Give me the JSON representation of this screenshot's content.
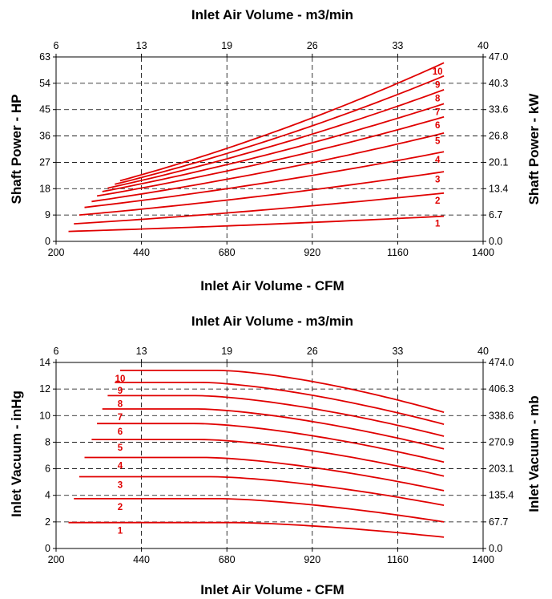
{
  "colors": {
    "curve": "#e00000",
    "text": "#000000",
    "background": "#ffffff"
  },
  "chart_data": [
    {
      "type": "line",
      "title_top": "Inlet Air Volume - m3/min",
      "xlabel": "Inlet Air Volume - CFM",
      "ylabel": "Shaft Power - HP",
      "ylabel_right": "Shaft Power - kW",
      "xlim": [
        200,
        1400
      ],
      "ylim": [
        0,
        63
      ],
      "x_ticks": [
        "200",
        "440",
        "680",
        "920",
        "1160",
        "1400"
      ],
      "x_top_ticks": [
        "6",
        "13",
        "19",
        "26",
        "33",
        "40"
      ],
      "y_ticks": [
        "0",
        "9",
        "18",
        "27",
        "36",
        "45",
        "54",
        "63"
      ],
      "y_right_ticks": [
        "0.0",
        "6.7",
        "13.4",
        "20.1",
        "26.8",
        "33.6",
        "40.3",
        "47.0"
      ],
      "grid": true,
      "series": [
        {
          "name": "1",
          "x": [
            235,
            1290
          ],
          "y": [
            3.4,
            8.6
          ]
        },
        {
          "name": "2",
          "x": [
            250,
            1290
          ],
          "y": [
            6.0,
            16.5
          ]
        },
        {
          "name": "3",
          "x": [
            265,
            1290
          ],
          "y": [
            9.0,
            23.8
          ]
        },
        {
          "name": "4",
          "x": [
            280,
            1290
          ],
          "y": [
            11.6,
            30.6
          ]
        },
        {
          "name": "5",
          "x": [
            300,
            1290
          ],
          "y": [
            13.6,
            37.0
          ]
        },
        {
          "name": "6",
          "x": [
            315,
            1290
          ],
          "y": [
            15.5,
            42.5
          ]
        },
        {
          "name": "7",
          "x": [
            330,
            1290
          ],
          "y": [
            17.0,
            47.0
          ]
        },
        {
          "name": "8",
          "x": [
            345,
            1290
          ],
          "y": [
            18.2,
            51.8
          ]
        },
        {
          "name": "9",
          "x": [
            365,
            1290
          ],
          "y": [
            19.5,
            56.5
          ]
        },
        {
          "name": "10",
          "x": [
            380,
            1290
          ],
          "y": [
            20.7,
            61.0
          ]
        }
      ]
    },
    {
      "type": "line",
      "title_top": "Inlet Air Volume - m3/min",
      "xlabel": "Inlet Air Volume - CFM",
      "ylabel": "Inlet Vacuum - inHg",
      "ylabel_right": "Inlet Vacuum - mb",
      "xlim": [
        200,
        1400
      ],
      "ylim": [
        0,
        14
      ],
      "x_ticks": [
        "200",
        "440",
        "680",
        "920",
        "1160",
        "1400"
      ],
      "x_top_ticks": [
        "6",
        "13",
        "19",
        "26",
        "33",
        "40"
      ],
      "y_ticks": [
        "0",
        "2",
        "4",
        "6",
        "8",
        "10",
        "12",
        "14"
      ],
      "y_right_ticks": [
        "0.0",
        "67.7",
        "135.4",
        "203.1",
        "270.9",
        "338.6",
        "406.3",
        "474.0"
      ],
      "grid": true,
      "series": [
        {
          "name": "1",
          "start": 235,
          "level": 1.95,
          "flat_end": 700,
          "y_end": 0.85
        },
        {
          "name": "2",
          "start": 250,
          "level": 3.75,
          "flat_end": 660,
          "y_end": 2.0
        },
        {
          "name": "3",
          "start": 265,
          "level": 5.4,
          "flat_end": 640,
          "y_end": 3.25
        },
        {
          "name": "4",
          "start": 280,
          "level": 6.85,
          "flat_end": 620,
          "y_end": 4.35
        },
        {
          "name": "5",
          "start": 300,
          "level": 8.2,
          "flat_end": 610,
          "y_end": 5.45
        },
        {
          "name": "6",
          "start": 315,
          "level": 9.4,
          "flat_end": 600,
          "y_end": 6.5
        },
        {
          "name": "7",
          "start": 330,
          "level": 10.5,
          "flat_end": 600,
          "y_end": 7.5
        },
        {
          "name": "8",
          "start": 345,
          "level": 11.5,
          "flat_end": 600,
          "y_end": 8.45
        },
        {
          "name": "9",
          "start": 365,
          "level": 12.5,
          "flat_end": 610,
          "y_end": 9.35
        },
        {
          "name": "10",
          "start": 380,
          "level": 13.4,
          "flat_end": 660,
          "y_end": 10.25
        }
      ]
    }
  ]
}
